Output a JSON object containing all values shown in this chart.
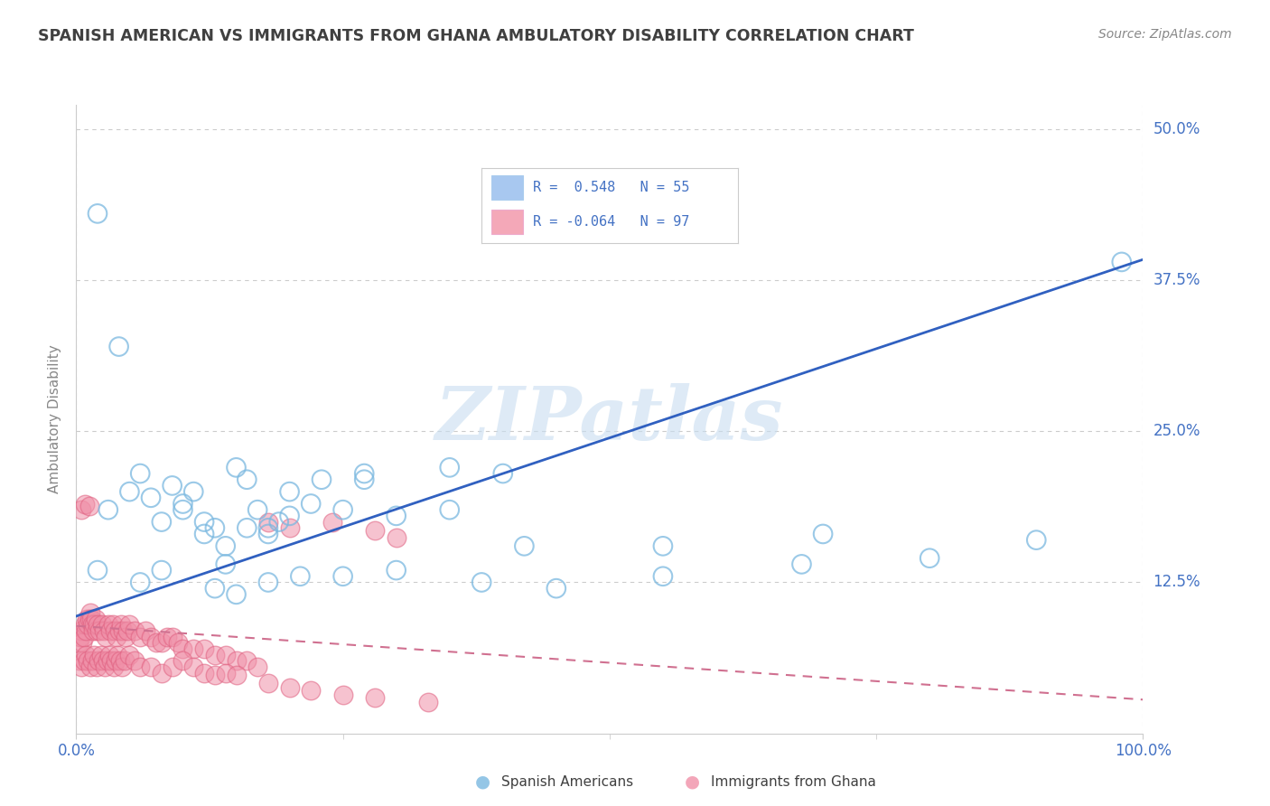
{
  "title": "SPANISH AMERICAN VS IMMIGRANTS FROM GHANA AMBULATORY DISABILITY CORRELATION CHART",
  "source": "Source: ZipAtlas.com",
  "ylabel": "Ambulatory Disability",
  "xlim": [
    0.0,
    1.0
  ],
  "ylim": [
    0.0,
    0.52
  ],
  "xticks": [
    0.0,
    1.0
  ],
  "xticklabels": [
    "0.0%",
    "100.0%"
  ],
  "yticks": [
    0.0,
    0.125,
    0.25,
    0.375,
    0.5
  ],
  "yticklabels": [
    "",
    "12.5%",
    "25.0%",
    "37.5%",
    "50.0%"
  ],
  "watermark": "ZIPatlas",
  "blue_scatter_x": [
    0.02,
    0.04,
    0.06,
    0.07,
    0.09,
    0.1,
    0.11,
    0.12,
    0.13,
    0.14,
    0.15,
    0.16,
    0.17,
    0.18,
    0.19,
    0.2,
    0.22,
    0.25,
    0.27,
    0.3,
    0.35,
    0.4,
    0.98,
    0.03,
    0.05,
    0.08,
    0.1,
    0.12,
    0.14,
    0.16,
    0.18,
    0.2,
    0.23,
    0.27,
    0.35,
    0.42,
    0.55,
    0.7,
    0.02,
    0.06,
    0.08,
    0.13,
    0.15,
    0.18,
    0.21,
    0.25,
    0.3,
    0.38,
    0.45,
    0.55,
    0.68,
    0.8,
    0.9
  ],
  "blue_scatter_y": [
    0.43,
    0.32,
    0.215,
    0.195,
    0.205,
    0.19,
    0.2,
    0.175,
    0.17,
    0.14,
    0.22,
    0.21,
    0.185,
    0.165,
    0.175,
    0.2,
    0.19,
    0.185,
    0.215,
    0.18,
    0.22,
    0.215,
    0.39,
    0.185,
    0.2,
    0.175,
    0.185,
    0.165,
    0.155,
    0.17,
    0.17,
    0.18,
    0.21,
    0.21,
    0.185,
    0.155,
    0.155,
    0.165,
    0.135,
    0.125,
    0.135,
    0.12,
    0.115,
    0.125,
    0.13,
    0.13,
    0.135,
    0.125,
    0.12,
    0.13,
    0.14,
    0.145,
    0.16
  ],
  "pink_scatter_x": [
    0.002,
    0.004,
    0.005,
    0.006,
    0.007,
    0.008,
    0.009,
    0.01,
    0.011,
    0.012,
    0.013,
    0.014,
    0.015,
    0.016,
    0.017,
    0.018,
    0.019,
    0.02,
    0.022,
    0.024,
    0.026,
    0.028,
    0.03,
    0.032,
    0.034,
    0.036,
    0.038,
    0.04,
    0.042,
    0.044,
    0.046,
    0.048,
    0.05,
    0.055,
    0.06,
    0.065,
    0.07,
    0.075,
    0.08,
    0.085,
    0.09,
    0.095,
    0.1,
    0.11,
    0.12,
    0.13,
    0.14,
    0.15,
    0.16,
    0.17,
    0.003,
    0.005,
    0.007,
    0.009,
    0.011,
    0.013,
    0.015,
    0.017,
    0.019,
    0.021,
    0.023,
    0.025,
    0.027,
    0.029,
    0.031,
    0.033,
    0.035,
    0.037,
    0.039,
    0.041,
    0.043,
    0.045,
    0.05,
    0.055,
    0.06,
    0.07,
    0.08,
    0.09,
    0.1,
    0.11,
    0.12,
    0.13,
    0.14,
    0.15,
    0.18,
    0.2,
    0.22,
    0.25,
    0.28,
    0.33,
    0.18,
    0.2,
    0.24,
    0.28,
    0.3,
    0.005,
    0.008,
    0.012
  ],
  "pink_scatter_y": [
    0.075,
    0.08,
    0.085,
    0.075,
    0.08,
    0.09,
    0.085,
    0.095,
    0.09,
    0.095,
    0.1,
    0.095,
    0.09,
    0.085,
    0.09,
    0.095,
    0.085,
    0.09,
    0.085,
    0.09,
    0.085,
    0.08,
    0.09,
    0.085,
    0.09,
    0.085,
    0.08,
    0.085,
    0.09,
    0.085,
    0.08,
    0.085,
    0.09,
    0.085,
    0.08,
    0.085,
    0.08,
    0.075,
    0.075,
    0.08,
    0.08,
    0.075,
    0.07,
    0.07,
    0.07,
    0.065,
    0.065,
    0.06,
    0.06,
    0.055,
    0.06,
    0.055,
    0.06,
    0.065,
    0.06,
    0.055,
    0.06,
    0.065,
    0.055,
    0.06,
    0.065,
    0.06,
    0.055,
    0.06,
    0.065,
    0.06,
    0.055,
    0.06,
    0.065,
    0.06,
    0.055,
    0.06,
    0.065,
    0.06,
    0.055,
    0.055,
    0.05,
    0.055,
    0.06,
    0.055,
    0.05,
    0.048,
    0.05,
    0.048,
    0.042,
    0.038,
    0.036,
    0.032,
    0.03,
    0.026,
    0.175,
    0.17,
    0.175,
    0.168,
    0.162,
    0.185,
    0.19,
    0.188
  ],
  "blue_line_x": [
    0.0,
    1.0
  ],
  "blue_line_y": [
    0.097,
    0.392
  ],
  "pink_line_x": [
    0.0,
    1.0
  ],
  "pink_line_y": [
    0.089,
    0.028
  ],
  "scatter_blue_color": "#7ab8e0",
  "scatter_blue_edge": "#5090c0",
  "scatter_pink_color": "#f090a8",
  "scatter_pink_edge": "#e06080",
  "line_blue_color": "#3060c0",
  "line_pink_color": "#d07090",
  "background_color": "#ffffff",
  "grid_color": "#cccccc",
  "title_color": "#404040",
  "axis_label_color": "#888888",
  "tick_label_color": "#4472c4",
  "legend_blue_face": "#a8c8f0",
  "legend_pink_face": "#f4a8b8",
  "legend_label1": "R =  0.548   N = 55",
  "legend_label2": "R = -0.064   N = 97"
}
